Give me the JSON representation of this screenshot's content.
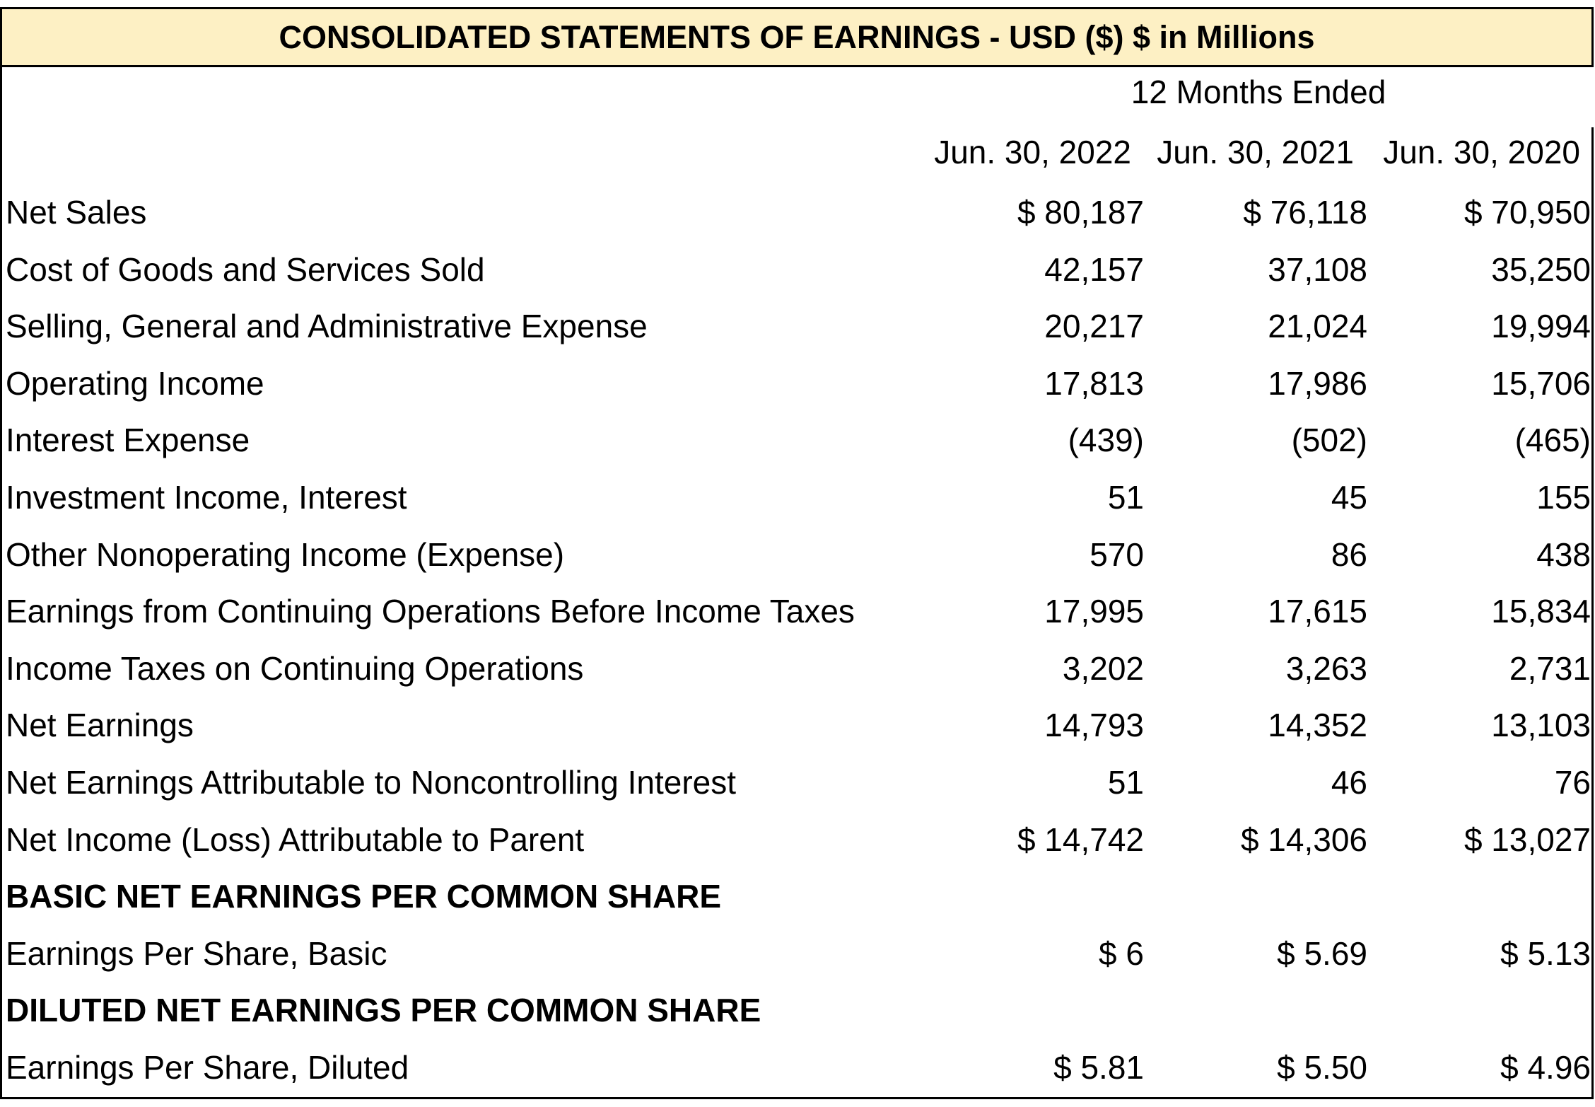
{
  "title": "CONSOLIDATED STATEMENTS OF EARNINGS - USD ($) $ in Millions",
  "period_header": "12 Months Ended",
  "columns": [
    "Jun. 30, 2022",
    "Jun. 30, 2021",
    "Jun. 30, 2020"
  ],
  "rows": [
    {
      "label": "Net Sales",
      "values": [
        "$ 80,187",
        "$ 76,118",
        "$ 70,950"
      ]
    },
    {
      "label": "Cost of Goods and Services Sold",
      "values": [
        "42,157",
        "37,108",
        "35,250"
      ]
    },
    {
      "label": "Selling, General and Administrative Expense",
      "values": [
        "20,217",
        "21,024",
        "19,994"
      ]
    },
    {
      "label": "Operating Income",
      "values": [
        "17,813",
        "17,986",
        "15,706"
      ]
    },
    {
      "label": "Interest Expense",
      "values": [
        "(439)",
        "(502)",
        "(465)"
      ]
    },
    {
      "label": "Investment Income, Interest",
      "values": [
        "51",
        "45",
        "155"
      ]
    },
    {
      "label": "Other Nonoperating Income (Expense)",
      "values": [
        "570",
        "86",
        "438"
      ]
    },
    {
      "label": "Earnings from Continuing Operations Before Income Taxes",
      "values": [
        "17,995",
        "17,615",
        "15,834"
      ]
    },
    {
      "label": "Income Taxes on Continuing Operations",
      "values": [
        "3,202",
        "3,263",
        "2,731"
      ]
    },
    {
      "label": "Net Earnings",
      "values": [
        "14,793",
        "14,352",
        "13,103"
      ]
    },
    {
      "label": "Net Earnings Attributable to Noncontrolling Interest",
      "values": [
        "51",
        "46",
        "76"
      ]
    },
    {
      "label": "Net Income (Loss) Attributable to Parent",
      "values": [
        "$ 14,742",
        "$ 14,306",
        "$ 13,027"
      ]
    },
    {
      "label": "BASIC NET EARNINGS PER COMMON SHARE",
      "section": true,
      "values": [
        "",
        "",
        ""
      ]
    },
    {
      "label": "Earnings Per Share, Basic",
      "values": [
        "$ 6",
        "$ 5.69",
        "$ 5.13"
      ]
    },
    {
      "label": "DILUTED NET EARNINGS PER COMMON SHARE",
      "section": true,
      "values": [
        "",
        "",
        ""
      ]
    },
    {
      "label": "Earnings Per Share, Diluted",
      "values": [
        "$ 5.81",
        "$ 5.50",
        "$ 4.96"
      ]
    }
  ]
}
